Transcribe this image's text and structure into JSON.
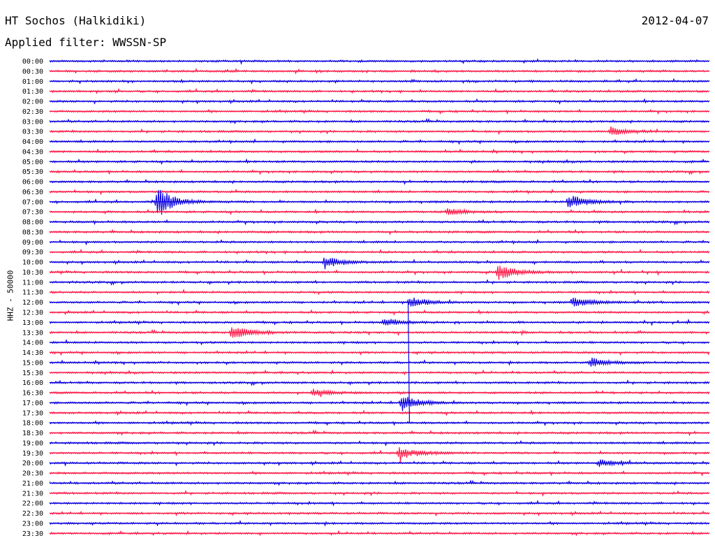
{
  "header": {
    "station": "HT Sochos (Halkidiki)",
    "date": "2012-04-07",
    "filter": "Applied filter: WWSSN-SP"
  },
  "channel_label": "HHZ - 50000",
  "colors": {
    "blue": "#0a00e0",
    "red": "#ff1a48"
  },
  "chart_data": {
    "type": "line",
    "title": "HT Sochos (Halkidiki)",
    "ylabel": "HHZ - 50000",
    "row_labels": [
      "00:00",
      "00:30",
      "01:00",
      "01:30",
      "02:00",
      "02:30",
      "03:00",
      "03:30",
      "04:00",
      "04:30",
      "05:00",
      "05:30",
      "06:00",
      "06:30",
      "07:00",
      "07:30",
      "08:00",
      "08:30",
      "09:00",
      "09:30",
      "10:00",
      "10:30",
      "11:00",
      "11:30",
      "12:00",
      "12:30",
      "13:00",
      "13:30",
      "14:00",
      "14:30",
      "15:00",
      "15:30",
      "16:00",
      "16:30",
      "17:00",
      "17:30",
      "18:00",
      "18:30",
      "19:00",
      "19:30",
      "20:00",
      "20:30",
      "21:00",
      "21:30",
      "22:00",
      "22:30",
      "23:00",
      "23:30"
    ],
    "row_colors_cycle": [
      "blue",
      "red"
    ],
    "x_range_minutes": [
      0,
      30
    ],
    "events": [
      {
        "row": "03:30",
        "minute": 25.5,
        "amp": 8
      },
      {
        "row": "07:00",
        "minute": 4.9,
        "amp": 24
      },
      {
        "row": "07:00",
        "minute": 23.6,
        "amp": 12
      },
      {
        "row": "07:30",
        "minute": 18.1,
        "amp": 6
      },
      {
        "row": "10:00",
        "minute": 12.5,
        "amp": 10
      },
      {
        "row": "10:30",
        "minute": 20.4,
        "amp": 14
      },
      {
        "row": "12:00",
        "minute": 16.4,
        "amp": 9
      },
      {
        "row": "12:00",
        "minute": 23.8,
        "amp": 10
      },
      {
        "row": "13:00",
        "minute": 15.2,
        "amp": 7
      },
      {
        "row": "13:30",
        "minute": 8.3,
        "amp": 14
      },
      {
        "row": "15:00",
        "minute": 24.6,
        "amp": 8
      },
      {
        "row": "16:30",
        "minute": 12.0,
        "amp": 6
      },
      {
        "row": "17:00",
        "minute": 16.0,
        "amp": 14
      },
      {
        "row": "19:30",
        "minute": 15.9,
        "amp": 12
      },
      {
        "row": "20:00",
        "minute": 25.0,
        "amp": 6
      }
    ]
  }
}
